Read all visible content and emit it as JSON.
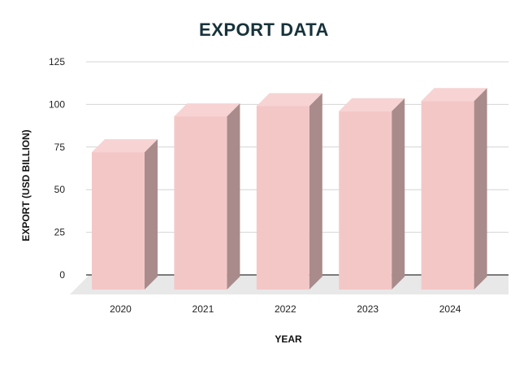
{
  "chart_data": {
    "type": "bar",
    "title": "EXPORT DATA",
    "xlabel": "YEAR",
    "ylabel": "EXPORT (USD BILLION)",
    "categories": [
      "2020",
      "2021",
      "2022",
      "2023",
      "2024"
    ],
    "values": [
      72,
      93,
      99,
      96,
      102
    ],
    "ylim": [
      0,
      125
    ],
    "yticks": [
      "0",
      "25",
      "50",
      "75",
      "100",
      "125"
    ],
    "grid": true,
    "legend": "none",
    "colors": {
      "bar_front": "#f4c7c7",
      "bar_top": "#f7d3d3",
      "bar_side": "#a98b8b",
      "floor": "#e8e8e8",
      "grid": "#d4d4d4",
      "baseline": "#333333"
    }
  }
}
